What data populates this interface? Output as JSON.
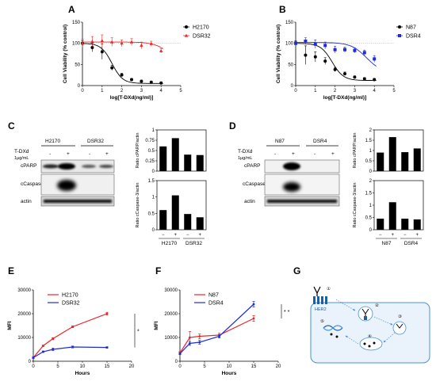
{
  "panels": {
    "A": "A",
    "B": "B",
    "C": "C",
    "D": "D",
    "E": "E",
    "F": "F",
    "G": "G"
  },
  "chart_data": [
    {
      "id": "A",
      "type": "scatter",
      "xlabel": "log[T-DXd(ng/ml)]",
      "ylabel": "Cell Viability (% control)",
      "xlim": [
        0,
        5
      ],
      "ylim": [
        0,
        150
      ],
      "xticks": [
        "0",
        "1",
        "2",
        "3",
        "4",
        "5"
      ],
      "yticks": [
        "0",
        "50",
        "100",
        "150"
      ],
      "legend": "top-right",
      "series": [
        {
          "name": "H2170",
          "color": "#000000",
          "marker": "circle",
          "x": [
            0,
            0.5,
            1,
            1.5,
            2,
            2.5,
            3,
            3.5,
            4
          ],
          "y": [
            100,
            90,
            80,
            42,
            25,
            14,
            10,
            8,
            6
          ],
          "err": [
            6,
            10,
            18,
            6,
            4,
            3,
            3,
            2,
            2
          ],
          "fit": {
            "top": 100,
            "bottom": 5,
            "logec50": 1.5,
            "hill": 1.6
          }
        },
        {
          "name": "DSR32",
          "color": "#e8262a",
          "marker": "triangle",
          "x": [
            0,
            0.5,
            1,
            1.5,
            2,
            2.5,
            3,
            3.5,
            4
          ],
          "y": [
            100,
            104,
            106,
            103,
            100,
            103,
            95,
            99,
            82
          ],
          "err": [
            10,
            12,
            14,
            10,
            8,
            8,
            8,
            6,
            5
          ],
          "fit": {
            "top": 103,
            "bottom": 60,
            "logec50": 4.3,
            "hill": 1.2
          }
        }
      ]
    },
    {
      "id": "B",
      "type": "scatter",
      "xlabel": "log[T-DXd(ng/ml)]",
      "ylabel": "Cell Viability (% control)",
      "xlim": [
        0,
        5
      ],
      "ylim": [
        0,
        150
      ],
      "xticks": [
        "0",
        "1",
        "2",
        "3",
        "4",
        "5"
      ],
      "yticks": [
        "0",
        "50",
        "100",
        "150"
      ],
      "legend": "top-right",
      "series": [
        {
          "name": "N87",
          "color": "#000000",
          "marker": "circle",
          "x": [
            0,
            0.5,
            1,
            1.5,
            2,
            2.5,
            3,
            3.5,
            4
          ],
          "y": [
            100,
            72,
            68,
            58,
            38,
            28,
            20,
            16,
            14
          ],
          "err": [
            5,
            22,
            12,
            8,
            5,
            4,
            3,
            3,
            3
          ],
          "fit": {
            "top": 100,
            "bottom": 12,
            "logec50": 1.85,
            "hill": 1.5
          }
        },
        {
          "name": "DSR4",
          "color": "#1f2bd6",
          "marker": "square",
          "x": [
            0,
            0.5,
            1,
            1.5,
            2,
            2.5,
            3,
            3.5,
            4
          ],
          "y": [
            100,
            105,
            98,
            95,
            85,
            85,
            83,
            78,
            63
          ],
          "err": [
            6,
            8,
            10,
            8,
            8,
            6,
            6,
            6,
            8
          ],
          "fit": {
            "top": 102,
            "bottom": 30,
            "logec50": 3.6,
            "hill": 1.1
          }
        }
      ]
    },
    {
      "id": "C-cPARP",
      "type": "bar",
      "ylabel": "Ratio cPARP/actin",
      "ylim": [
        0,
        1
      ],
      "yticks": [
        "0",
        "0.25",
        "0.5",
        "0.75",
        "1"
      ],
      "values": [
        0.6,
        0.8,
        0.4,
        0.39
      ]
    },
    {
      "id": "C-cCaspase3",
      "type": "bar",
      "ylabel": "Ratio cCaspase-3/actin",
      "ylim": [
        0,
        1.5
      ],
      "yticks": [
        "0",
        "0.5",
        "1",
        "1.5"
      ],
      "values": [
        0.6,
        1.05,
        0.48,
        0.38
      ],
      "categories": [
        "−",
        "+",
        "−",
        "+"
      ],
      "groups": [
        "H2170",
        "DSR32"
      ]
    },
    {
      "id": "D-cPARP",
      "type": "bar",
      "ylabel": "Ratio cPARP/actin",
      "ylim": [
        0,
        2
      ],
      "yticks": [
        "0",
        "0.5",
        "1",
        "1.5",
        "2"
      ],
      "values": [
        0.9,
        1.65,
        0.92,
        1.1
      ]
    },
    {
      "id": "D-cCaspase3",
      "type": "bar",
      "ylabel": "Ratio cCaspase-3/actin",
      "ylim": [
        0,
        2
      ],
      "yticks": [
        "0",
        "0.5",
        "1",
        "1.5",
        "2"
      ],
      "values": [
        0.45,
        1.12,
        0.45,
        0.42
      ],
      "categories": [
        "−",
        "+",
        "−",
        "+"
      ],
      "groups": [
        "N87",
        "DSR4"
      ]
    },
    {
      "id": "E",
      "type": "line",
      "xlabel": "Hours",
      "ylabel": "MFI",
      "xlim": [
        0,
        20
      ],
      "ylim": [
        0,
        30000
      ],
      "xticks": [
        "0",
        "5",
        "10",
        "15",
        "20"
      ],
      "yticks": [
        "0",
        "10000",
        "20000",
        "30000"
      ],
      "legend": "top-left",
      "significance": "*",
      "series": [
        {
          "name": "H2170",
          "color": "#e8262a",
          "x": [
            0,
            2,
            4,
            8,
            15
          ],
          "y": [
            1500,
            6500,
            9500,
            14500,
            20000
          ],
          "err": [
            300,
            300,
            400,
            400,
            600
          ]
        },
        {
          "name": "DSR32",
          "color": "#1f2bd6",
          "x": [
            0,
            2,
            4,
            8,
            15
          ],
          "y": [
            1500,
            4000,
            5000,
            6000,
            5800
          ],
          "err": [
            300,
            300,
            500,
            400,
            300
          ]
        }
      ]
    },
    {
      "id": "F",
      "type": "line",
      "xlabel": "Hours",
      "ylabel": "MFI",
      "xlim": [
        0,
        20
      ],
      "ylim": [
        0,
        30000
      ],
      "xticks": [
        "0",
        "5",
        "10",
        "15",
        "20"
      ],
      "yticks": [
        "0",
        "10000",
        "20000",
        "30000"
      ],
      "legend": "top-left",
      "significance": "* *",
      "series": [
        {
          "name": "N87",
          "color": "#e8262a",
          "x": [
            0,
            2,
            4,
            8,
            15
          ],
          "y": [
            3500,
            10000,
            10500,
            11000,
            18000
          ],
          "err": [
            500,
            2500,
            1000,
            800,
            1200
          ]
        },
        {
          "name": "DSR4",
          "color": "#1f2bd6",
          "x": [
            0,
            2,
            4,
            8,
            15
          ],
          "y": [
            3200,
            7500,
            8000,
            10500,
            24000
          ],
          "err": [
            400,
            800,
            800,
            700,
            1200
          ]
        }
      ]
    }
  ],
  "blots": {
    "C": {
      "cells": [
        "H2170",
        "DSR32"
      ],
      "treatment": [
        "T-DXd",
        "1µg/mL"
      ],
      "signs": [
        "-",
        "+",
        "-",
        "+"
      ],
      "bands": [
        "cPARP",
        "cCaspase-3",
        "actin"
      ]
    },
    "D": {
      "cells": [
        "N87",
        "DSR4"
      ],
      "treatment": [
        "T-DXd",
        "1µg/mL"
      ],
      "signs": [
        "-",
        "+",
        "-",
        "+"
      ],
      "bands": [
        "cPARP",
        "cCaspase-3",
        "actin"
      ]
    }
  },
  "schematic": {
    "her2": "HER2",
    "steps": [
      "①",
      "②",
      "③",
      "④",
      "⑤"
    ]
  }
}
